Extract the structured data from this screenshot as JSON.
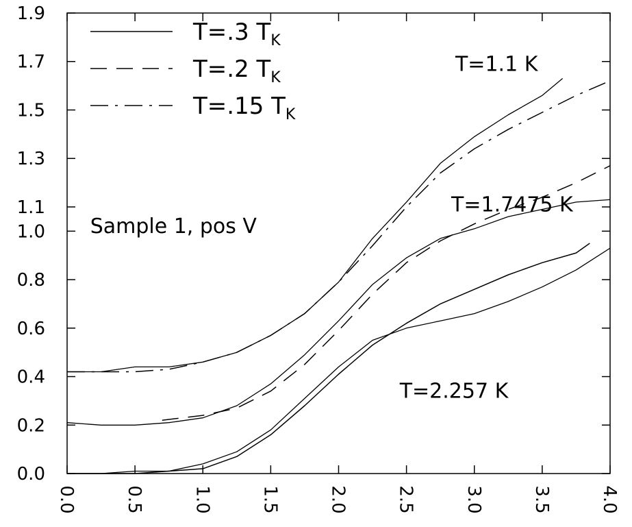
{
  "chart_data": {
    "type": "line",
    "title": "",
    "xlabel": "",
    "ylabel": "",
    "xlim": [
      0,
      4
    ],
    "ylim": [
      0,
      1.9
    ],
    "grid": false,
    "legend_placement": "top-left",
    "x_ticks": [
      "0.0",
      "0.5",
      "1.0",
      "1.5",
      "2.0",
      "2.5",
      "3.0",
      "3.5",
      "4.0"
    ],
    "y_ticks": [
      "0.0",
      "0.2",
      "0.4",
      "0.6",
      "0.8",
      "1.0",
      "1.1",
      "1.3",
      "1.5",
      "1.7",
      "1.9"
    ],
    "legend": [
      {
        "label": "T=.3",
        "sub": "K",
        "style": "solid"
      },
      {
        "label": "T=.2",
        "sub": "K",
        "style": "dashed"
      },
      {
        "label": "T=.15",
        "sub": "K",
        "style": "dashdot"
      }
    ],
    "annotations": [
      {
        "text": "T=1.1  K",
        "x": 2.86,
        "y": 1.69
      },
      {
        "text": "T=1.7475  K",
        "x": 2.83,
        "y": 1.11
      },
      {
        "text": "T=2.257  K",
        "x": 2.45,
        "y": 0.34
      },
      {
        "text": "Sample 1, pos V",
        "x": 0.17,
        "y": 1.02
      }
    ],
    "series": [
      {
        "style": "data",
        "x": [
          0.0,
          0.25,
          0.5,
          0.75,
          1.0,
          1.25,
          1.5,
          1.75,
          2.0,
          2.25,
          2.5,
          2.75,
          3.0,
          3.25,
          3.5,
          3.65
        ],
        "y": [
          0.42,
          0.42,
          0.44,
          0.44,
          0.46,
          0.5,
          0.57,
          0.66,
          0.79,
          0.97,
          1.12,
          1.28,
          1.39,
          1.48,
          1.56,
          1.63
        ]
      },
      {
        "style": "dashdot",
        "x": [
          0.0,
          0.25,
          0.5,
          0.75,
          1.0,
          1.25,
          1.5,
          1.75,
          2.0,
          2.25,
          2.5,
          2.75,
          3.0,
          3.25,
          3.5,
          3.75,
          4.0
        ],
        "y": [
          0.42,
          0.42,
          0.42,
          0.43,
          0.46,
          0.5,
          0.57,
          0.66,
          0.79,
          0.94,
          1.1,
          1.24,
          1.34,
          1.42,
          1.49,
          1.56,
          1.62
        ]
      },
      {
        "style": "data",
        "x": [
          0.0,
          0.25,
          0.5,
          0.75,
          1.0,
          1.25,
          1.5,
          1.75,
          2.0,
          2.25,
          2.5,
          2.75,
          3.0,
          3.25,
          3.5,
          3.75,
          4.0
        ],
        "y": [
          0.21,
          0.2,
          0.2,
          0.21,
          0.23,
          0.28,
          0.37,
          0.49,
          0.63,
          0.78,
          0.89,
          0.97,
          1.01,
          1.06,
          1.09,
          1.12,
          1.13
        ]
      },
      {
        "style": "dashed",
        "x": [
          0.7,
          1.0,
          1.25,
          1.5,
          1.75,
          2.0,
          2.25,
          2.5,
          2.75,
          3.0,
          3.25,
          3.5,
          3.75,
          4.0
        ],
        "y": [
          0.22,
          0.24,
          0.27,
          0.34,
          0.45,
          0.59,
          0.74,
          0.87,
          0.96,
          1.03,
          1.09,
          1.14,
          1.2,
          1.27
        ]
      },
      {
        "style": "data",
        "x": [
          0.0,
          0.25,
          0.5,
          0.75,
          1.0,
          1.25,
          1.5,
          1.75,
          2.0,
          2.25,
          2.5,
          2.75,
          3.0,
          3.25,
          3.5,
          3.75,
          4.0
        ],
        "y": [
          0.0,
          0.0,
          0.01,
          0.01,
          0.04,
          0.09,
          0.18,
          0.31,
          0.44,
          0.55,
          0.6,
          0.63,
          0.66,
          0.71,
          0.77,
          0.84,
          0.93
        ]
      },
      {
        "style": "solid",
        "x": [
          0.0,
          0.25,
          0.5,
          0.75,
          1.0,
          1.25,
          1.5,
          1.75,
          2.0,
          2.25,
          2.5,
          2.75,
          3.0,
          3.25,
          3.5,
          3.75,
          3.85
        ],
        "y": [
          0.0,
          0.0,
          0.0,
          0.01,
          0.02,
          0.07,
          0.16,
          0.28,
          0.41,
          0.53,
          0.62,
          0.7,
          0.76,
          0.82,
          0.87,
          0.91,
          0.95
        ]
      }
    ]
  }
}
